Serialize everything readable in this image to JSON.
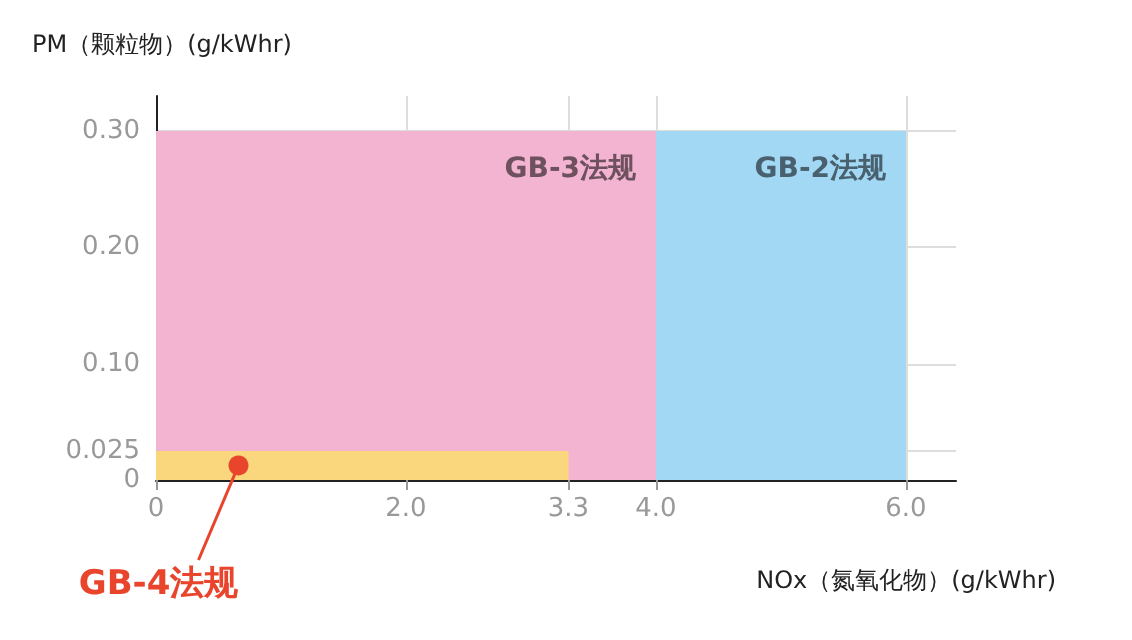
{
  "chart_data": {
    "type": "area",
    "ylabel": "PM（颗粒物）(g/kWhr)",
    "xlabel": "NOx（氮氧化物）(g/kWhr)",
    "series": [
      {
        "name": "GB-2法规",
        "color": "#a2d8f4",
        "x": [
          0,
          6.0
        ],
        "values": [
          0.3,
          0.3
        ]
      },
      {
        "name": "GB-3法规",
        "color": "#f3b4d1",
        "x": [
          0,
          4.0
        ],
        "values": [
          0.3,
          0.3
        ]
      },
      {
        "name": "GB-4法规",
        "color": "#fad77c",
        "x": [
          0,
          3.3
        ],
        "values": [
          0.025,
          0.025
        ]
      }
    ],
    "xlim": [
      0,
      6.4
    ],
    "xticks": [
      0,
      {
        "value": 2,
        "label": "2.0"
      },
      3.3,
      {
        "value": 4,
        "label": "4.0"
      },
      {
        "value": 6,
        "label": "6.0"
      }
    ],
    "ylim": [
      0,
      0.33
    ],
    "yticks": [
      0,
      0.025,
      {
        "value": 0.1,
        "label": "0.10"
      },
      {
        "value": 0.2,
        "label": "0.20"
      },
      {
        "value": 0.3,
        "label": "0.30"
      }
    ],
    "grid": true
  }
}
